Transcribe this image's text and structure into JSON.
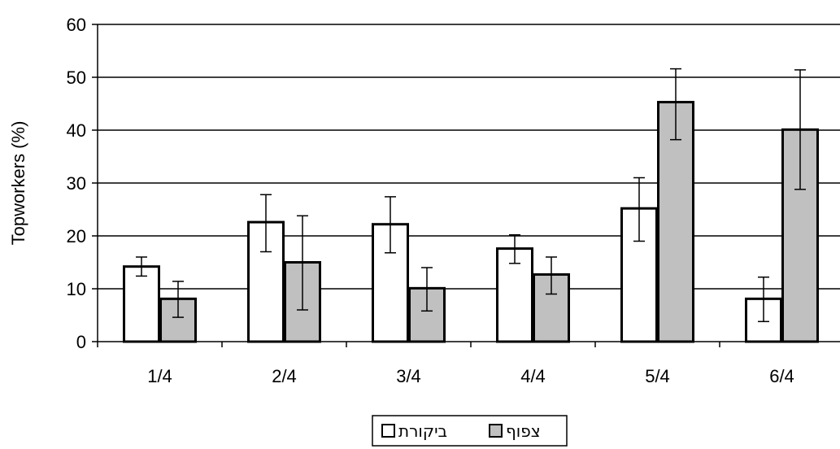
{
  "chart_data": {
    "type": "bar",
    "title": "",
    "xlabel": "",
    "ylabel": "Topworkers (%)",
    "categories": [
      "1/4",
      "2/4",
      "3/4",
      "4/4",
      "5/4",
      "6/4"
    ],
    "ylim": [
      0,
      60
    ],
    "yticks": [
      0,
      10,
      20,
      30,
      40,
      50,
      60
    ],
    "grid": true,
    "legend_position": "bottom",
    "series": [
      {
        "name": "ביקורת",
        "color": "#ffffff",
        "values": [
          14.2,
          22.6,
          22.2,
          17.6,
          25.2,
          8.1
        ],
        "error_low": [
          12.4,
          17.0,
          16.8,
          14.8,
          19.0,
          3.8
        ],
        "error_high": [
          16.0,
          27.8,
          27.4,
          20.2,
          31.0,
          12.2
        ]
      },
      {
        "name": "צפוף",
        "color": "#c0c0c0",
        "values": [
          8.1,
          15.0,
          10.1,
          12.7,
          45.3,
          40.1
        ],
        "error_low": [
          4.6,
          6.0,
          5.8,
          9.0,
          38.2,
          28.8
        ],
        "error_high": [
          11.4,
          23.8,
          14.0,
          16.0,
          51.6,
          51.4
        ]
      }
    ]
  }
}
